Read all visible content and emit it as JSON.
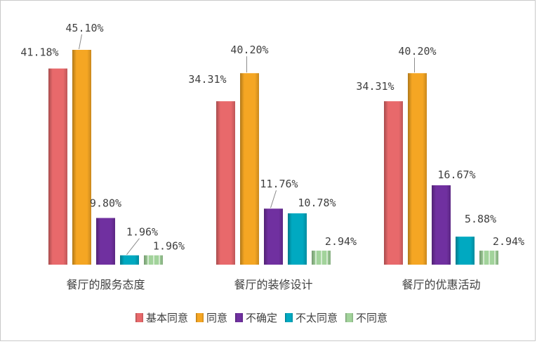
{
  "chart_data": {
    "type": "bar",
    "categories": [
      "餐厅的服务态度",
      "餐厅的装修设计",
      "餐厅的优惠活动"
    ],
    "series": [
      {
        "name": "基本同意",
        "color": "#e8696b",
        "values": [
          41.18,
          34.31,
          34.31
        ]
      },
      {
        "name": "同意",
        "color": "#f5a623",
        "values": [
          45.1,
          40.2,
          40.2
        ]
      },
      {
        "name": "不确定",
        "color": "#7030a0",
        "values": [
          9.8,
          11.76,
          16.67
        ]
      },
      {
        "name": "不太同意",
        "color": "#00a9c1",
        "values": [
          1.96,
          10.78,
          5.88
        ]
      },
      {
        "name": "不同意",
        "color": "#a2d39b",
        "values": [
          1.96,
          2.94,
          2.94
        ]
      }
    ],
    "value_labels": [
      [
        "41.18%",
        "45.10%",
        "9.80%",
        "1.96%",
        "1.96%"
      ],
      [
        "34.31%",
        "40.20%",
        "11.76%",
        "10.78%",
        "2.94%"
      ],
      [
        "34.31%",
        "40.20%",
        "16.67%",
        "5.88%",
        "2.94%"
      ]
    ],
    "ylim": [
      0,
      50
    ],
    "grid": false,
    "legend_position": "bottom"
  }
}
